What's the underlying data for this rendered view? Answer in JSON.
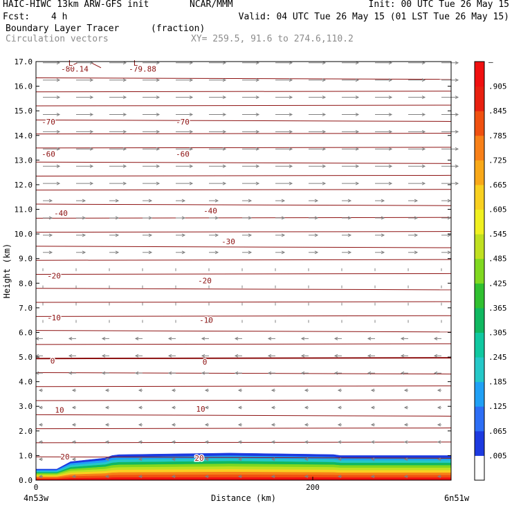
{
  "header": {
    "model": "HAIC-HIWC 13km ARW-GFS init",
    "org": "NCAR/MMM",
    "init": "Init: 00 UTC Tue 26 May 15",
    "fcst_label": "Fcst:",
    "fcst_value": "4 h",
    "valid": "Valid: 04 UTC Tue 26 May 15 (01 LST Tue 26 May 15)",
    "field_name": "Boundary Layer Tracer",
    "field_units": "(fraction)",
    "vector_name": "Circulation vectors",
    "xsec": "XY= 259.5, 91.6 to 274.6,110.2"
  },
  "chart_data": {
    "type": "heatmap",
    "ylabel": "Height (km)",
    "xlabel": "Distance (km)",
    "ylim": [
      0,
      17
    ],
    "xlim": [
      0,
      300
    ],
    "y_ticks": [
      "0.0",
      "1.0",
      "2.0",
      "3.0",
      "4.0",
      "5.0",
      "6.0",
      "7.0",
      "8.0",
      "9.0",
      "10.0",
      "11.0",
      "12.0",
      "13.0",
      "14.0",
      "15.0",
      "16.0",
      "17.0"
    ],
    "x_ticks": [
      {
        "value": 0,
        "label": "0"
      },
      {
        "value": 200,
        "label": "200"
      }
    ],
    "x_endpoints": {
      "left": "4n53w",
      "right": "6n51w"
    },
    "colorbar_labels": [
      ".005",
      ".065",
      ".125",
      ".185",
      ".245",
      ".305",
      ".365",
      ".425",
      ".485",
      ".545",
      ".605",
      ".665",
      ".725",
      ".785",
      ".845",
      ".905",
      "–"
    ],
    "colorbar_colors": [
      "#ffffff",
      "#1c3ae0",
      "#2d6ef5",
      "#20a0f5",
      "#25c8c8",
      "#10c8a0",
      "#10b860",
      "#30c030",
      "#80d820",
      "#c0e020",
      "#f0f020",
      "#f8d020",
      "#f8a818",
      "#f88018",
      "#f05010",
      "#e82010",
      "#f01010"
    ],
    "contour_color": "#8c1010",
    "vector_color": "#808080",
    "contour_labels": [
      {
        "text": "-80.14",
        "x": 28,
        "y": 16.7
      },
      {
        "text": "L",
        "x": 25,
        "y": 16.95
      },
      {
        "text": "-79.88",
        "x": 77,
        "y": 16.7
      },
      {
        "text": "L",
        "x": 72,
        "y": 16.95
      },
      {
        "text": "-70",
        "x": 9,
        "y": 14.55
      },
      {
        "text": "-70",
        "x": 106,
        "y": 14.55
      },
      {
        "text": "-60",
        "x": 9,
        "y": 13.25
      },
      {
        "text": "-60",
        "x": 106,
        "y": 13.25
      },
      {
        "text": "-40",
        "x": 18,
        "y": 10.85
      },
      {
        "text": "-40",
        "x": 126,
        "y": 10.95
      },
      {
        "text": "-30",
        "x": 139,
        "y": 9.7
      },
      {
        "text": "-20",
        "x": 13,
        "y": 8.3
      },
      {
        "text": "-20",
        "x": 122,
        "y": 8.1
      },
      {
        "text": "-10",
        "x": 13,
        "y": 6.6
      },
      {
        "text": "-10",
        "x": 123,
        "y": 6.5
      },
      {
        "text": "0",
        "x": 12,
        "y": 4.85
      },
      {
        "text": "0",
        "x": 122,
        "y": 4.8
      },
      {
        "text": "10",
        "x": 17,
        "y": 2.85
      },
      {
        "text": "10",
        "x": 119,
        "y": 2.9
      },
      {
        "text": "20",
        "x": 21,
        "y": 0.95
      },
      {
        "text": "20",
        "x": 118,
        "y": 0.9
      }
    ]
  }
}
